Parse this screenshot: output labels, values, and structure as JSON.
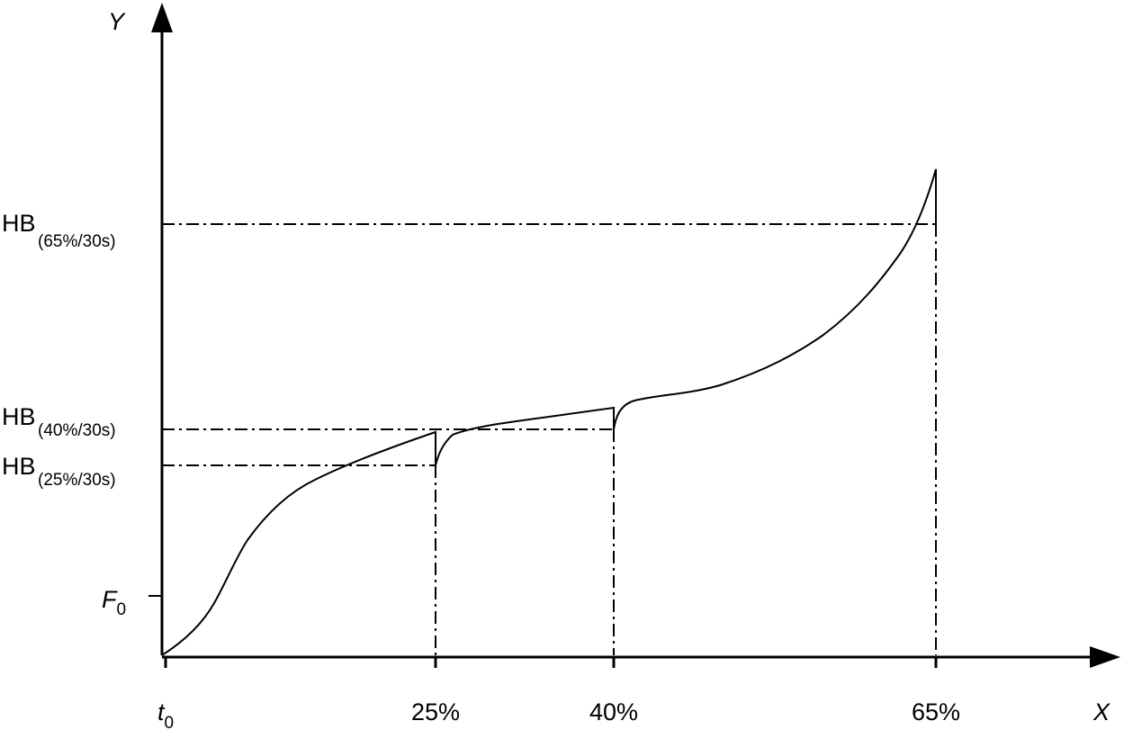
{
  "axes": {
    "x_title": "X",
    "y_title": "Y",
    "origin_label": {
      "main": "t",
      "sub": "0"
    },
    "f0_label": {
      "main": "F",
      "sub": "0"
    }
  },
  "x_ticks": [
    "25%",
    "40%",
    "65%"
  ],
  "y_levels": [
    {
      "main": "HB",
      "sub": "(65%/30s)"
    },
    {
      "main": "HB",
      "sub": "(40%/30s)"
    },
    {
      "main": "HB",
      "sub": "(25%/30s)"
    }
  ],
  "colors": {
    "ink": "#000000",
    "background": "#ffffff"
  }
}
